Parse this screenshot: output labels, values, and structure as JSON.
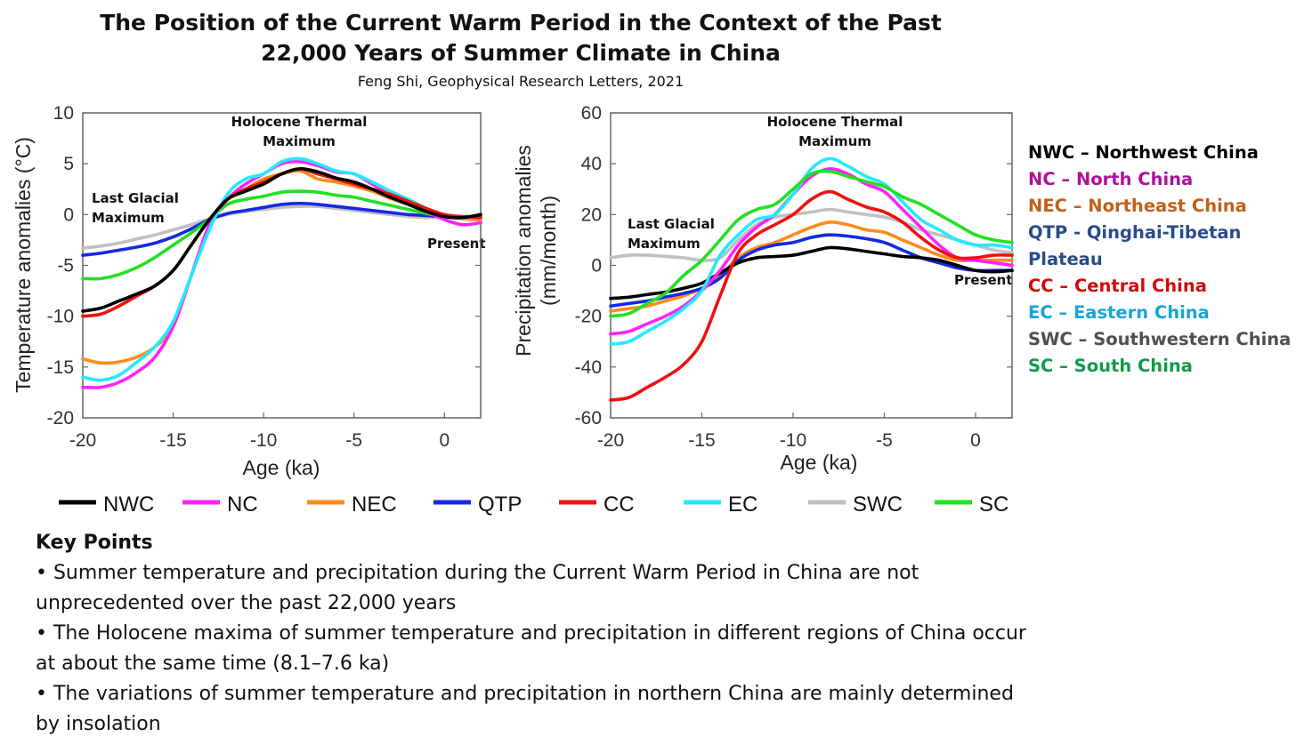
{
  "title_line1": "The Position of the Current Warm Period in the Context of the Past",
  "title_line2": "22,000 Years of Summer Climate in China",
  "subtitle": "Feng Shi, Geophysical Research Letters, 2021",
  "legend": [
    {
      "code": "NWC",
      "line_color": "#000000"
    },
    {
      "code": "NC",
      "line_color": "#ff22ff"
    },
    {
      "code": "NEC",
      "line_color": "#ff8a1a"
    },
    {
      "code": "QTP",
      "line_color": "#1428e6"
    },
    {
      "code": "CC",
      "line_color": "#f01010"
    },
    {
      "code": "EC",
      "line_color": "#22eaff"
    },
    {
      "code": "SWC",
      "line_color": "#c0c0c0"
    },
    {
      "code": "SC",
      "line_color": "#22e022"
    }
  ],
  "region_legend": [
    {
      "text": "NWC – Northwest China",
      "color": "#000000"
    },
    {
      "text": "NC – North China",
      "color": "#b0109a"
    },
    {
      "text": "NEC – Northeast China",
      "color": "#c0601a"
    },
    {
      "text": "QTP - Qinghai-Tibetan",
      "color": "#2a4a8a"
    },
    {
      "text": "Plateau",
      "color": "#2a4a8a"
    },
    {
      "text": "CC – Central China",
      "color": "#d00a0a"
    },
    {
      "text": "EC – Eastern China",
      "color": "#1aa4d8"
    },
    {
      "text": "SWC – Southwestern China",
      "color": "#505050"
    },
    {
      "text": "SC – South China",
      "color": "#12994a"
    }
  ],
  "key_points": {
    "heading": "Key Points",
    "items": [
      "• Summer temperature and precipitation during the Current Warm Period in China are not unprecedented over the past 22,000 years",
      "• The Holocene maxima of summer temperature and precipitation in different regions of China occur at about the same time (8.1–7.6 ka)",
      "• The variations of summer temperature and precipitation in northern China are mainly determined by insolation"
    ]
  },
  "chart_data": [
    {
      "type": "line",
      "title": "",
      "xlabel": "Age (ka)",
      "ylabel": "Temperature anomalies (°C)",
      "xlim": [
        -20,
        2
      ],
      "ylim": [
        -20,
        10
      ],
      "xticks": [
        -20,
        -15,
        -10,
        -5,
        0
      ],
      "yticks": [
        10,
        5,
        0,
        -5,
        -10,
        -15,
        -20
      ],
      "grid": false,
      "annotations": [
        "Holocene Thermal",
        "Maximum",
        "Last Glacial",
        "Maximum",
        "Present"
      ],
      "x": [
        -20,
        -19,
        -18,
        -17,
        -16,
        -15,
        -14,
        -13,
        -12,
        -11,
        -10,
        -9,
        -8,
        -7,
        -6,
        -5,
        -4,
        -3,
        -2,
        -1,
        0,
        1,
        2
      ],
      "series": [
        {
          "name": "SWC",
          "values": [
            -3.3,
            -3.1,
            -2.8,
            -2.4,
            -2,
            -1.5,
            -1,
            -0.4,
            0,
            0.3,
            0.5,
            0.7,
            0.8,
            0.8,
            0.6,
            0.4,
            0.2,
            0,
            -0.2,
            -0.3,
            -0.3,
            -0.3,
            -0.3
          ]
        },
        {
          "name": "QTP",
          "values": [
            -4,
            -3.8,
            -3.5,
            -3.2,
            -2.8,
            -2.2,
            -1.4,
            -0.5,
            0.1,
            0.4,
            0.7,
            1,
            1.1,
            1,
            0.8,
            0.6,
            0.4,
            0.2,
            0,
            -0.1,
            -0.2,
            -0.2,
            -0.2
          ]
        },
        {
          "name": "SC",
          "values": [
            -6.3,
            -6.3,
            -5.9,
            -5.2,
            -4.2,
            -3,
            -1.8,
            -0.5,
            1,
            1.5,
            1.8,
            2.2,
            2.3,
            2.2,
            1.9,
            1.7,
            1.3,
            0.9,
            0.5,
            0.1,
            -0.2,
            -0.4,
            -0.5
          ]
        },
        {
          "name": "NEC",
          "values": [
            -14.2,
            -14.6,
            -14.5,
            -14,
            -13,
            -11,
            -6,
            -1,
            1.5,
            2.5,
            3.5,
            4,
            4.3,
            3.5,
            3.2,
            2.8,
            2.3,
            1.6,
            1,
            0.3,
            -0.2,
            -0.4,
            -0.5
          ]
        },
        {
          "name": "NC",
          "values": [
            -17,
            -17,
            -16.5,
            -15.5,
            -14,
            -11,
            -6,
            -1,
            1.5,
            3,
            4,
            5,
            5.2,
            4.8,
            4.2,
            4,
            3,
            2,
            1.2,
            0.3,
            -0.5,
            -1,
            -0.8
          ]
        },
        {
          "name": "EC",
          "values": [
            -16,
            -16.3,
            -15.8,
            -14.5,
            -13,
            -10.5,
            -6,
            -1.5,
            2,
            3.5,
            4,
            5.2,
            5.5,
            5,
            4.3,
            4,
            3.2,
            2.3,
            1.5,
            0.6,
            -0.1,
            -0.3,
            -0.3
          ]
        },
        {
          "name": "CC",
          "values": [
            -10,
            -9.8,
            -9,
            -8,
            -7,
            -5.5,
            -3,
            -0.5,
            1.5,
            2.5,
            3.2,
            4,
            4.5,
            4,
            3.5,
            3,
            2.5,
            2,
            1.3,
            0.6,
            0,
            -0.2,
            -0.3
          ]
        },
        {
          "name": "NWC",
          "values": [
            -9.5,
            -9.2,
            -8.5,
            -7.8,
            -7,
            -5.5,
            -3,
            -0.5,
            1.5,
            2.3,
            3,
            4,
            4.5,
            4.2,
            3.6,
            3.2,
            2.5,
            1.7,
            1,
            0.3,
            -0.2,
            -0.3,
            0
          ]
        }
      ]
    },
    {
      "type": "line",
      "title": "",
      "xlabel": "Age (ka)",
      "ylabel": [
        "Precipitation anomalies",
        "(mm/month)"
      ],
      "xlim": [
        -20,
        2
      ],
      "ylim": [
        -60,
        60
      ],
      "xticks": [
        -20,
        -15,
        -10,
        -5,
        0
      ],
      "yticks": [
        60,
        40,
        20,
        0,
        -20,
        -40,
        -60
      ],
      "grid": false,
      "annotations": [
        "Holocene Thermal",
        "Maximum",
        "Last Glacial",
        "Maximum",
        "Present"
      ],
      "x": [
        -20,
        -19,
        -18,
        -17,
        -16,
        -15,
        -14,
        -13,
        -12,
        -11,
        -10,
        -9,
        -8,
        -7,
        -6,
        -5,
        -4,
        -3,
        -2,
        -1,
        0,
        1,
        2
      ],
      "series": [
        {
          "name": "SWC",
          "values": [
            3,
            4,
            4,
            3.5,
            3,
            2,
            3,
            10,
            16,
            19,
            20,
            21,
            22,
            21,
            20,
            19,
            17,
            14,
            12,
            10,
            8,
            6,
            5
          ]
        },
        {
          "name": "NEC",
          "values": [
            -18,
            -17,
            -16,
            -14,
            -12,
            -9,
            -4,
            3,
            7,
            9,
            12,
            15,
            17,
            16,
            14,
            13,
            10,
            7,
            4,
            2,
            2,
            2,
            2
          ]
        },
        {
          "name": "QTP",
          "values": [
            -16,
            -15,
            -14,
            -12.5,
            -11,
            -9,
            -5,
            2,
            6,
            8,
            9,
            11,
            12,
            11.5,
            10.5,
            9,
            6,
            3,
            1,
            -1,
            -2,
            -2,
            -2
          ]
        },
        {
          "name": "NWC",
          "values": [
            -13,
            -12.5,
            -11.5,
            -10.5,
            -9,
            -7,
            -3,
            1,
            3,
            3.5,
            4,
            5.5,
            7,
            6.5,
            5.5,
            4.5,
            3.5,
            3,
            2,
            0,
            -2,
            -2.5,
            -2
          ]
        },
        {
          "name": "NC",
          "values": [
            -27,
            -26,
            -23,
            -20,
            -16,
            -10,
            -2,
            8,
            15,
            20,
            28,
            35,
            38,
            36,
            32,
            29,
            22,
            15,
            8,
            3,
            2,
            1,
            0
          ]
        },
        {
          "name": "EC",
          "values": [
            -31,
            -30,
            -26,
            -22,
            -17,
            -10,
            4,
            12,
            18,
            20,
            28,
            38,
            42,
            39,
            35,
            32,
            25,
            18,
            14,
            10,
            8,
            8,
            7
          ]
        },
        {
          "name": "CC",
          "values": [
            -53,
            -52,
            -48,
            -44,
            -39,
            -30,
            -12,
            5,
            12,
            16,
            20,
            26,
            29,
            26,
            23,
            21,
            17,
            11,
            6,
            3,
            3,
            4,
            4
          ]
        },
        {
          "name": "SC",
          "values": [
            -20,
            -19,
            -15,
            -11,
            -4,
            2,
            10,
            18,
            22,
            24,
            30,
            36,
            37,
            35,
            33,
            31,
            27,
            24,
            20,
            16,
            12,
            10,
            9
          ]
        }
      ]
    }
  ]
}
